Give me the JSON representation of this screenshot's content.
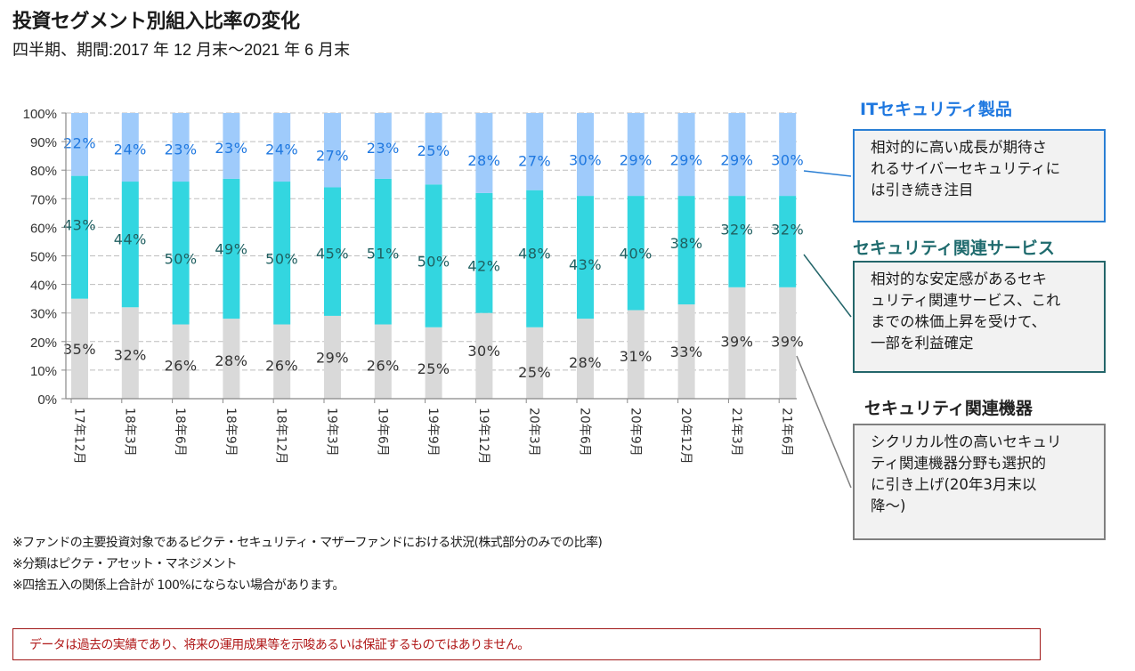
{
  "header": {
    "title": "投資セグメント別組入比率の変化",
    "subtitle": "四半期、期間:2017 年 12 月末～2021 年 6 月末"
  },
  "chart_data": {
    "type": "bar",
    "stacked": true,
    "orientation": "vertical",
    "categories": [
      "17年12月",
      "18年3月",
      "18年6月",
      "18年9月",
      "18年12月",
      "19年3月",
      "19年6月",
      "19年9月",
      "19年12月",
      "20年3月",
      "20年6月",
      "20年9月",
      "20年12月",
      "21年3月",
      "21年6月"
    ],
    "series": [
      {
        "name": "セキュリティ関連機器",
        "color": "#d9d9d9",
        "label_color": "#333333",
        "values": [
          35,
          32,
          26,
          28,
          26,
          29,
          26,
          25,
          30,
          25,
          28,
          31,
          33,
          39,
          39
        ]
      },
      {
        "name": "セキュリティ関連サービス",
        "color": "#33d6e0",
        "label_color": "#1f5f60",
        "values": [
          43,
          44,
          50,
          49,
          50,
          45,
          51,
          50,
          42,
          48,
          43,
          40,
          38,
          32,
          32
        ]
      },
      {
        "name": "ITセキュリティ製品",
        "color": "#9fcbfb",
        "label_color": "#1f78e0",
        "values": [
          22,
          24,
          23,
          23,
          24,
          27,
          23,
          25,
          28,
          27,
          30,
          29,
          29,
          29,
          30
        ]
      }
    ],
    "ylim": [
      0,
      100
    ],
    "yticks": [
      "0%",
      "10%",
      "20%",
      "30%",
      "40%",
      "50%",
      "60%",
      "70%",
      "80%",
      "90%",
      "100%"
    ],
    "grid": true,
    "data_labels": true,
    "title": "投資セグメント別組入比率の変化",
    "xlabel": "",
    "ylabel": ""
  },
  "annotations": [
    {
      "title": "ITセキュリティ製品",
      "title_color": "#1f78e0",
      "border_color": "#2a7fd4",
      "lines": [
        "相対的に高い成長が期待さ",
        "れるサイバーセキュリティに",
        "は引き続き注目"
      ]
    },
    {
      "title": "セキュリティ関連サービス",
      "title_color": "#1f6b6e",
      "border_color": "#24666a",
      "lines": [
        "相対的な安定感があるセキ",
        "ュリティ関連サービス、これ",
        "までの株価上昇を受けて、",
        "一部を利益確定"
      ]
    },
    {
      "title": "セキュリティ関連機器",
      "title_color": "#222222",
      "border_color": "#7f7f7f",
      "lines": [
        "シクリカル性の高いセキュリ",
        "ティ関連機器分野も選択的",
        "に引き上げ(20年3月末以",
        "降～)"
      ]
    }
  ],
  "footnotes": [
    "※ファンドの主要投資対象であるピクテ・セキュリティ・マザーファンドにおける状況(株式部分のみでの比率)",
    "※分類はピクテ・アセット・マネジメント",
    "※四捨五入の関係上合計が 100%にならない場合があります。"
  ],
  "disclaimer": "データは過去の実績であり、将来の運用成果等を示唆あるいは保証するものではありません。"
}
